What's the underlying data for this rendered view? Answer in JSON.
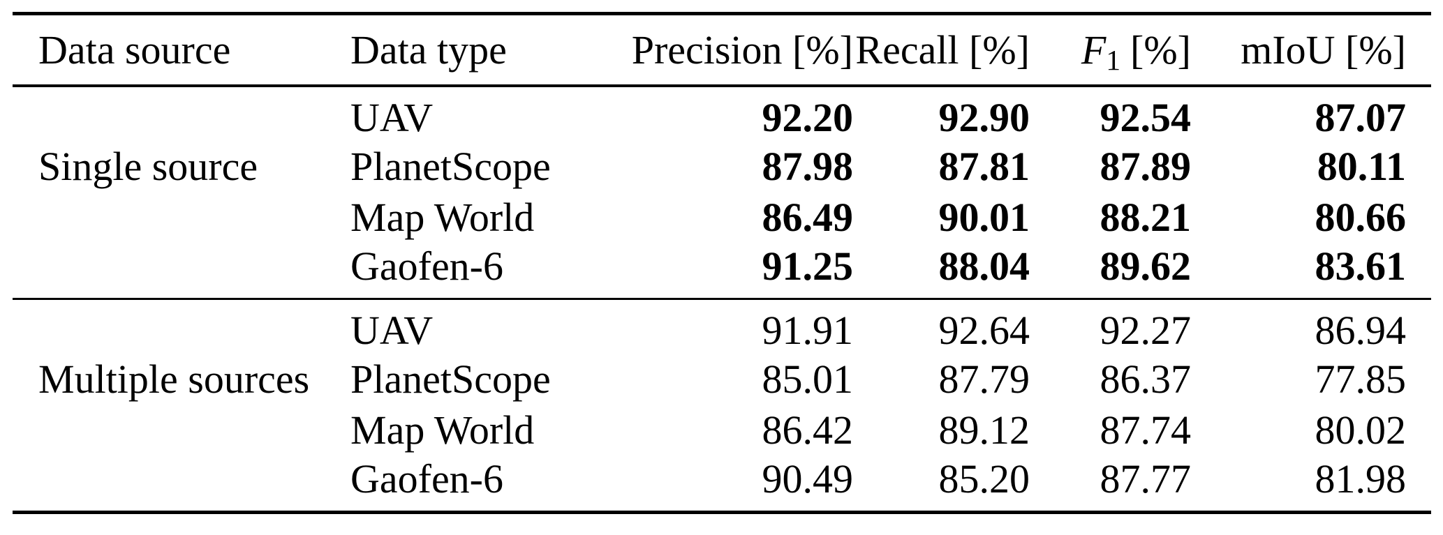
{
  "header": {
    "data_source": "Data source",
    "data_type": "Data type",
    "precision": "Precision [%]",
    "recall": "Recall [%]",
    "f1_letter": "F",
    "f1_sub": "1",
    "f1_unit": "[%]",
    "miou": "mIoU [%]"
  },
  "groups": [
    {
      "label": "Single source",
      "emphasis": "bold",
      "rows": [
        {
          "data_type": "UAV",
          "precision": "92.20",
          "recall": "92.90",
          "f1": "92.54",
          "miou": "87.07"
        },
        {
          "data_type": "PlanetScope",
          "precision": "87.98",
          "recall": "87.81",
          "f1": "87.89",
          "miou": "80.11"
        },
        {
          "data_type": "Map World",
          "precision": "86.49",
          "recall": "90.01",
          "f1": "88.21",
          "miou": "80.66"
        },
        {
          "data_type": "Gaofen-6",
          "precision": "91.25",
          "recall": "88.04",
          "f1": "89.62",
          "miou": "83.61"
        }
      ]
    },
    {
      "label": "Multiple sources",
      "emphasis": "normal",
      "rows": [
        {
          "data_type": "UAV",
          "precision": "91.91",
          "recall": "92.64",
          "f1": "92.27",
          "miou": "86.94"
        },
        {
          "data_type": "PlanetScope",
          "precision": "85.01",
          "recall": "87.79",
          "f1": "86.37",
          "miou": "77.85"
        },
        {
          "data_type": "Map World",
          "precision": "86.42",
          "recall": "89.12",
          "f1": "87.74",
          "miou": "80.02"
        },
        {
          "data_type": "Gaofen-6",
          "precision": "90.49",
          "recall": "85.20",
          "f1": "87.77",
          "miou": "81.98"
        }
      ]
    }
  ],
  "colors": {
    "text": "#000000",
    "background": "#ffffff",
    "rule": "#000000"
  }
}
